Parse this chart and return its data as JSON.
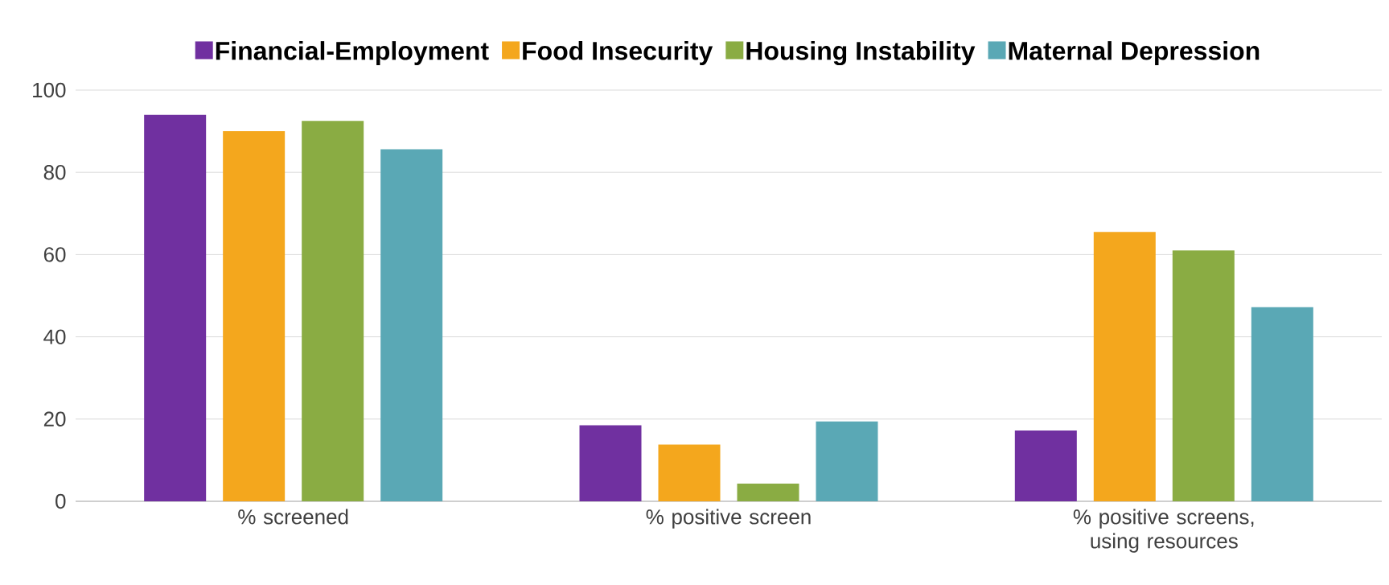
{
  "chart_data": {
    "type": "bar",
    "categories": [
      "% screened",
      "% positive screen",
      "% positive screens, using resources"
    ],
    "series": [
      {
        "name": "Financial-Employment",
        "color": "#7030a0",
        "values": [
          94,
          18.5,
          17.2
        ]
      },
      {
        "name": "Food Insecurity",
        "color": "#f4a71d",
        "values": [
          90,
          13.8,
          65.5
        ]
      },
      {
        "name": "Housing Instability",
        "color": "#8aac43",
        "values": [
          92.5,
          4.3,
          61
        ]
      },
      {
        "name": "Maternal Depression",
        "color": "#5aa8b5",
        "values": [
          85.6,
          19.4,
          47.2
        ]
      }
    ],
    "ylim": [
      0,
      100
    ],
    "yticks": [
      0,
      20,
      40,
      60,
      80,
      100
    ],
    "grid": "y",
    "legend": "top"
  }
}
